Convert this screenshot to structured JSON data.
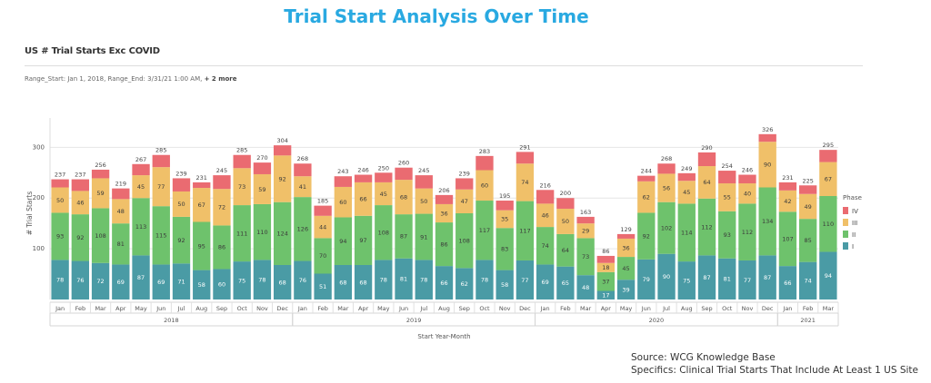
{
  "page_title": "Trial Start Analysis Over Time",
  "chart_title": "US # Trial Starts Exc COVID",
  "range_text": "Range_Start: Jan 1, 2018, Range_End: 3/31/21 1:00 AM,",
  "range_more": "+ 2 more",
  "source_lines": [
    "Source: WCG Knowledge Base",
    "Specifics: Clinical Trial Starts That Include At Least 1 US Site"
  ],
  "chart_data": {
    "type": "bar",
    "stacked": true,
    "title": "US # Trial Starts Exc COVID",
    "xlabel": "Start Year-Month",
    "ylabel": "# Trial Starts",
    "ylim": [
      0,
      340
    ],
    "yticks": [
      100,
      200,
      300
    ],
    "grid": true,
    "legend_title": "Phase",
    "legend_position": "right",
    "categories": [
      "Jan",
      "Feb",
      "Mar",
      "Apr",
      "May",
      "Jun",
      "Jul",
      "Aug",
      "Sep",
      "Oct",
      "Nov",
      "Dec",
      "Jan",
      "Feb",
      "Mar",
      "Apr",
      "May",
      "Jun",
      "Jul",
      "Aug",
      "Sep",
      "Oct",
      "Nov",
      "Dec",
      "Jan",
      "Feb",
      "Mar",
      "Apr",
      "May",
      "Jun",
      "Jul",
      "Aug",
      "Sep",
      "Oct",
      "Nov",
      "Dec",
      "Jan",
      "Feb",
      "Mar"
    ],
    "years": [
      {
        "label": "2018",
        "start": 0,
        "count": 12
      },
      {
        "label": "2019",
        "start": 12,
        "count": 12
      },
      {
        "label": "2020",
        "start": 24,
        "count": 12
      },
      {
        "label": "2021",
        "start": 36,
        "count": 3
      }
    ],
    "totals": [
      237,
      237,
      256,
      219,
      267,
      285,
      239,
      231,
      245,
      285,
      270,
      304,
      268,
      185,
      243,
      246,
      250,
      260,
      245,
      206,
      239,
      283,
      195,
      291,
      216,
      200,
      163,
      86,
      129,
      244,
      268,
      249,
      290,
      254,
      246,
      326,
      231,
      225,
      295
    ],
    "series": [
      {
        "name": "I",
        "color": "#4a9ba5",
        "values": [
          78,
          76,
          72,
          69,
          87,
          69,
          71,
          58,
          60,
          75,
          78,
          68,
          76,
          51,
          68,
          68,
          78,
          81,
          78,
          66,
          62,
          78,
          58,
          77,
          69,
          65,
          48,
          17,
          39,
          79,
          90,
          75,
          87,
          81,
          77,
          87,
          66,
          74,
          94
        ]
      },
      {
        "name": "II",
        "color": "#6ec26c",
        "values": [
          93,
          92,
          108,
          81,
          113,
          115,
          92,
          95,
          86,
          111,
          110,
          124,
          126,
          70,
          94,
          97,
          108,
          87,
          91,
          86,
          108,
          117,
          83,
          117,
          74,
          64,
          73,
          37,
          45,
          92,
          102,
          114,
          112,
          93,
          112,
          134,
          107,
          85,
          110
        ]
      },
      {
        "name": "III",
        "color": "#f0c069",
        "values": [
          50,
          46,
          59,
          48,
          45,
          77,
          50,
          67,
          72,
          73,
          59,
          92,
          41,
          44,
          60,
          66,
          45,
          68,
          50,
          36,
          47,
          60,
          35,
          74,
          46,
          50,
          29,
          18,
          36,
          62,
          56,
          45,
          64,
          55,
          40,
          90,
          42,
          49,
          67
        ]
      },
      {
        "name": "IV",
        "color": "#ea6b71",
        "values": [
          16,
          23,
          17,
          21,
          22,
          24,
          26,
          11,
          27,
          26,
          23,
          20,
          25,
          20,
          21,
          15,
          19,
          24,
          26,
          18,
          22,
          28,
          19,
          23,
          27,
          21,
          13,
          14,
          9,
          11,
          20,
          15,
          27,
          25,
          17,
          15,
          16,
          17,
          24
        ]
      }
    ],
    "legend_order": [
      "IV",
      "III",
      "II",
      "I"
    ]
  }
}
